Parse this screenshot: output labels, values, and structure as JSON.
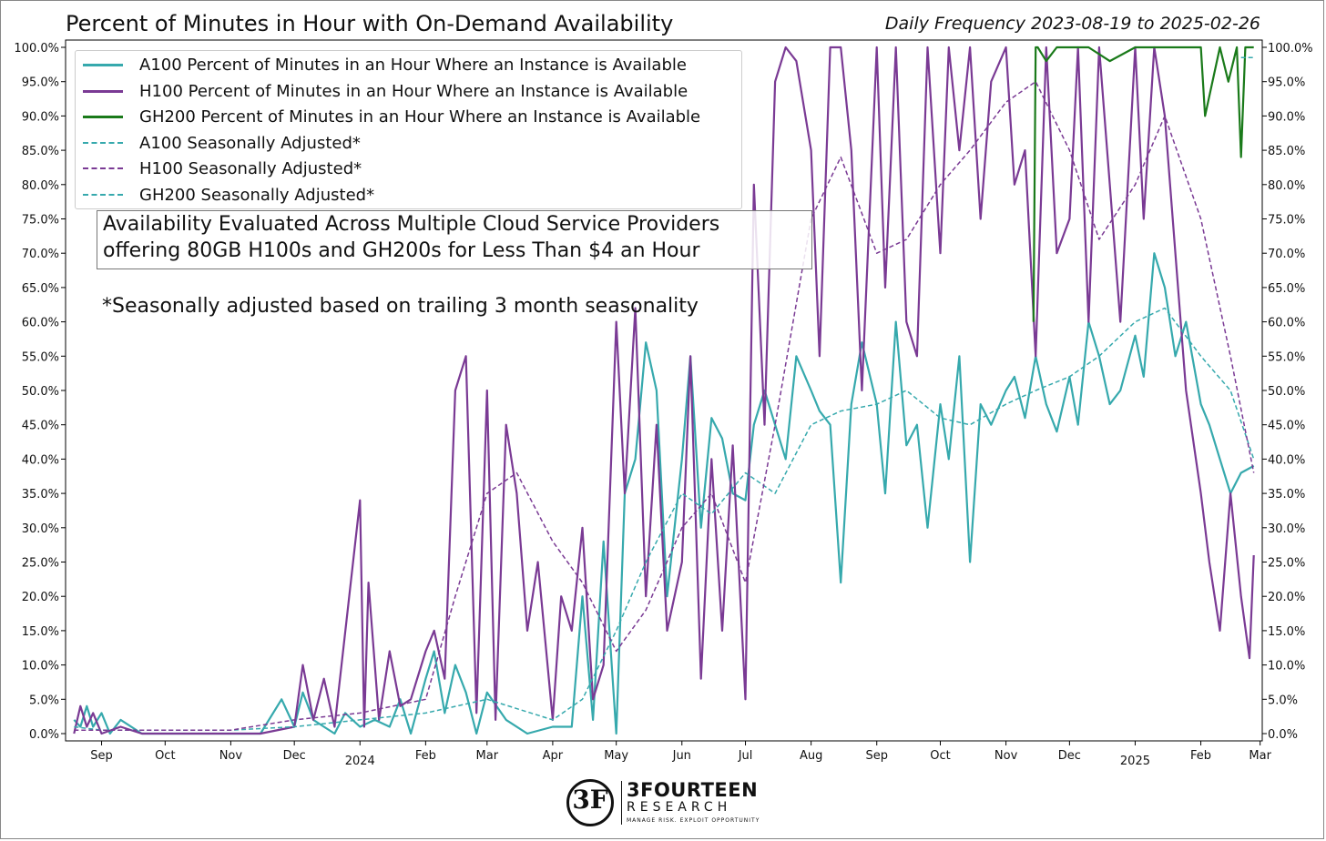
{
  "title": "Percent of Minutes in Hour with On-Demand Availability",
  "subtitle": "Daily Frequency 2023-08-19 to 2025-02-26",
  "annotation_lines": [
    "Availability Evaluated Across Multiple Cloud Service Providers",
    "offering 80GB H100s and GH200s for Less Than $4 an Hour"
  ],
  "note": "*Seasonally adjusted based on trailing 3 month seasonality",
  "logo": {
    "glyph": "3F",
    "name": "3FOURTEEN",
    "sub": "RESEARCH",
    "tagline": "MANAGE RISK. EXPLOIT OPPORTUNITY"
  },
  "colors": {
    "a100": "#36a9ad",
    "h100": "#7a3a94",
    "gh200": "#1a7a1a",
    "a100_sa": "#36a9ad",
    "h100_sa": "#7a3a94",
    "gh200_sa": "#36a9ad"
  },
  "legend": [
    {
      "label": "A100 Percent of Minutes in an Hour Where an Instance is Available",
      "style": "solid",
      "color": "#36a9ad"
    },
    {
      "label": "H100 Percent of Minutes in an Hour Where an Instance is Available",
      "style": "solid",
      "color": "#7a3a94"
    },
    {
      "label": "GH200 Percent of Minutes in an Hour Where an Instance is Available",
      "style": "solid",
      "color": "#1a7a1a"
    },
    {
      "label": "A100 Seasonally Adjusted*",
      "style": "dashed",
      "color": "#36a9ad"
    },
    {
      "label": "H100 Seasonally Adjusted*",
      "style": "dashed",
      "color": "#7a3a94"
    },
    {
      "label": "GH200 Seasonally Adjusted*",
      "style": "dashed",
      "color": "#36a9ad"
    }
  ],
  "chart_data": {
    "type": "line",
    "title": "Percent of Minutes in Hour with On-Demand Availability",
    "subtitle": "Daily Frequency 2023-08-19 to 2025-02-26",
    "xlabel": "",
    "ylabel": "",
    "xlim": [
      "2023-08-15",
      "2025-03-02"
    ],
    "ylim": [
      0,
      100
    ],
    "y_ticks": [
      0,
      5,
      10,
      15,
      20,
      25,
      30,
      35,
      40,
      45,
      50,
      55,
      60,
      65,
      70,
      75,
      80,
      85,
      90,
      95,
      100
    ],
    "y_tick_labels": [
      "0.0%",
      "5.0%",
      "10.0%",
      "15.0%",
      "20.0%",
      "25.0%",
      "30.0%",
      "35.0%",
      "40.0%",
      "45.0%",
      "50.0%",
      "55.0%",
      "60.0%",
      "65.0%",
      "70.0%",
      "75.0%",
      "80.0%",
      "85.0%",
      "90.0%",
      "95.0%",
      "100.0%"
    ],
    "x_ticks": [
      {
        "date": "2023-09-01",
        "label": "Sep",
        "year": ""
      },
      {
        "date": "2023-10-01",
        "label": "Oct",
        "year": ""
      },
      {
        "date": "2023-11-01",
        "label": "Nov",
        "year": ""
      },
      {
        "date": "2023-12-01",
        "label": "Dec",
        "year": ""
      },
      {
        "date": "2024-01-01",
        "label": "",
        "year": "2024"
      },
      {
        "date": "2024-02-01",
        "label": "Feb",
        "year": ""
      },
      {
        "date": "2024-03-01",
        "label": "Mar",
        "year": ""
      },
      {
        "date": "2024-04-01",
        "label": "Apr",
        "year": ""
      },
      {
        "date": "2024-05-01",
        "label": "May",
        "year": ""
      },
      {
        "date": "2024-06-01",
        "label": "Jun",
        "year": ""
      },
      {
        "date": "2024-07-01",
        "label": "Jul",
        "year": ""
      },
      {
        "date": "2024-08-01",
        "label": "Aug",
        "year": ""
      },
      {
        "date": "2024-09-01",
        "label": "Sep",
        "year": ""
      },
      {
        "date": "2024-10-01",
        "label": "Oct",
        "year": ""
      },
      {
        "date": "2024-11-01",
        "label": "Nov",
        "year": ""
      },
      {
        "date": "2024-12-01",
        "label": "Dec",
        "year": ""
      },
      {
        "date": "2025-01-01",
        "label": "",
        "year": "2025"
      },
      {
        "date": "2025-02-01",
        "label": "Feb",
        "year": ""
      },
      {
        "date": "2025-03-01",
        "label": "Mar",
        "year": ""
      }
    ],
    "grid": false,
    "legend_position": "top-left",
    "series": [
      {
        "name": "A100 Percent of Minutes in an Hour Where an Instance is Available",
        "style": "solid",
        "x": [
          "2023-08-19",
          "2023-08-22",
          "2023-08-25",
          "2023-08-28",
          "2023-09-01",
          "2023-09-05",
          "2023-09-10",
          "2023-09-20",
          "2023-10-01",
          "2023-10-15",
          "2023-11-01",
          "2023-11-15",
          "2023-11-25",
          "2023-12-01",
          "2023-12-05",
          "2023-12-10",
          "2023-12-15",
          "2023-12-20",
          "2023-12-25",
          "2024-01-01",
          "2024-01-08",
          "2024-01-15",
          "2024-01-20",
          "2024-01-25",
          "2024-02-01",
          "2024-02-05",
          "2024-02-10",
          "2024-02-15",
          "2024-02-20",
          "2024-02-25",
          "2024-03-01",
          "2024-03-10",
          "2024-03-20",
          "2024-04-01",
          "2024-04-10",
          "2024-04-15",
          "2024-04-20",
          "2024-04-25",
          "2024-05-01",
          "2024-05-05",
          "2024-05-10",
          "2024-05-15",
          "2024-05-20",
          "2024-05-25",
          "2024-06-01",
          "2024-06-05",
          "2024-06-10",
          "2024-06-15",
          "2024-06-20",
          "2024-06-25",
          "2024-07-01",
          "2024-07-05",
          "2024-07-10",
          "2024-07-15",
          "2024-07-20",
          "2024-07-25",
          "2024-08-01",
          "2024-08-05",
          "2024-08-10",
          "2024-08-15",
          "2024-08-20",
          "2024-08-25",
          "2024-09-01",
          "2024-09-05",
          "2024-09-10",
          "2024-09-15",
          "2024-09-20",
          "2024-09-25",
          "2024-10-01",
          "2024-10-05",
          "2024-10-10",
          "2024-10-15",
          "2024-10-20",
          "2024-10-25",
          "2024-11-01",
          "2024-11-05",
          "2024-11-10",
          "2024-11-15",
          "2024-11-20",
          "2024-11-25",
          "2024-12-01",
          "2024-12-05",
          "2024-12-10",
          "2024-12-15",
          "2024-12-20",
          "2024-12-25",
          "2025-01-01",
          "2025-01-05",
          "2025-01-10",
          "2025-01-15",
          "2025-01-20",
          "2025-01-25",
          "2025-02-01",
          "2025-02-05",
          "2025-02-10",
          "2025-02-15",
          "2025-02-20",
          "2025-02-26"
        ],
        "y": [
          2,
          1,
          4,
          1,
          3,
          0,
          2,
          0,
          0,
          0,
          0,
          0,
          5,
          1,
          6,
          2,
          1,
          0,
          3,
          1,
          2,
          1,
          5,
          0,
          8,
          12,
          3,
          10,
          6,
          0,
          6,
          2,
          0,
          1,
          1,
          20,
          2,
          28,
          0,
          35,
          40,
          57,
          50,
          20,
          40,
          55,
          30,
          46,
          43,
          35,
          34,
          45,
          50,
          45,
          40,
          55,
          50,
          47,
          45,
          22,
          48,
          57,
          48,
          35,
          60,
          42,
          45,
          30,
          48,
          40,
          55,
          25,
          48,
          45,
          50,
          52,
          46,
          55,
          48,
          44,
          52,
          45,
          60,
          55,
          48,
          50,
          58,
          52,
          70,
          65,
          55,
          60,
          48,
          45,
          40,
          35,
          38,
          39
        ]
      },
      {
        "name": "H100 Percent of Minutes in an Hour Where an Instance is Available",
        "style": "solid",
        "x": [
          "2023-08-19",
          "2023-08-22",
          "2023-08-25",
          "2023-08-28",
          "2023-09-01",
          "2023-09-10",
          "2023-09-20",
          "2023-10-01",
          "2023-10-15",
          "2023-11-01",
          "2023-11-15",
          "2023-12-01",
          "2023-12-05",
          "2023-12-10",
          "2023-12-15",
          "2023-12-20",
          "2024-01-01",
          "2024-01-03",
          "2024-01-05",
          "2024-01-10",
          "2024-01-15",
          "2024-01-20",
          "2024-01-25",
          "2024-02-01",
          "2024-02-05",
          "2024-02-10",
          "2024-02-15",
          "2024-02-20",
          "2024-02-25",
          "2024-03-01",
          "2024-03-05",
          "2024-03-10",
          "2024-03-15",
          "2024-03-20",
          "2024-03-25",
          "2024-04-01",
          "2024-04-05",
          "2024-04-10",
          "2024-04-15",
          "2024-04-20",
          "2024-04-25",
          "2024-05-01",
          "2024-05-05",
          "2024-05-10",
          "2024-05-15",
          "2024-05-20",
          "2024-05-25",
          "2024-06-01",
          "2024-06-05",
          "2024-06-10",
          "2024-06-15",
          "2024-06-20",
          "2024-06-25",
          "2024-07-01",
          "2024-07-05",
          "2024-07-10",
          "2024-07-15",
          "2024-07-20",
          "2024-07-25",
          "2024-08-01",
          "2024-08-05",
          "2024-08-10",
          "2024-08-15",
          "2024-08-20",
          "2024-08-25",
          "2024-09-01",
          "2024-09-05",
          "2024-09-10",
          "2024-09-15",
          "2024-09-20",
          "2024-09-25",
          "2024-10-01",
          "2024-10-05",
          "2024-10-10",
          "2024-10-15",
          "2024-10-20",
          "2024-10-25",
          "2024-11-01",
          "2024-11-05",
          "2024-11-10",
          "2024-11-15",
          "2024-11-20",
          "2024-11-25",
          "2024-12-01",
          "2024-12-05",
          "2024-12-10",
          "2024-12-15",
          "2024-12-20",
          "2024-12-25",
          "2025-01-01",
          "2025-01-05",
          "2025-01-10",
          "2025-01-15",
          "2025-01-20",
          "2025-01-25",
          "2025-02-01",
          "2025-02-05",
          "2025-02-10",
          "2025-02-15",
          "2025-02-20",
          "2025-02-24",
          "2025-02-26"
        ],
        "y": [
          0,
          4,
          1,
          3,
          0,
          1,
          0,
          0,
          0,
          0,
          0,
          1,
          10,
          2,
          8,
          1,
          34,
          1,
          22,
          2,
          12,
          4,
          5,
          12,
          15,
          8,
          50,
          55,
          3,
          50,
          2,
          45,
          35,
          15,
          25,
          2,
          20,
          15,
          30,
          5,
          10,
          60,
          35,
          62,
          20,
          45,
          15,
          25,
          55,
          8,
          40,
          15,
          42,
          5,
          80,
          45,
          95,
          100,
          98,
          85,
          55,
          100,
          100,
          85,
          50,
          100,
          65,
          100,
          60,
          55,
          100,
          70,
          100,
          85,
          100,
          75,
          95,
          100,
          80,
          85,
          55,
          100,
          70,
          75,
          100,
          60,
          100,
          80,
          60,
          100,
          75,
          100,
          90,
          70,
          50,
          35,
          25,
          15,
          35,
          20,
          11,
          26
        ]
      },
      {
        "name": "GH200 Percent of Minutes in an Hour Where an Instance is Available",
        "style": "solid",
        "x": [
          "2024-11-14",
          "2024-11-15",
          "2024-11-16",
          "2024-11-20",
          "2024-11-25",
          "2024-12-01",
          "2024-12-10",
          "2024-12-20",
          "2025-01-01",
          "2025-01-10",
          "2025-01-20",
          "2025-01-25",
          "2025-02-01",
          "2025-02-03",
          "2025-02-10",
          "2025-02-14",
          "2025-02-18",
          "2025-02-20",
          "2025-02-22",
          "2025-02-26"
        ],
        "y": [
          60,
          100,
          100,
          98,
          100,
          100,
          100,
          98,
          100,
          100,
          100,
          100,
          100,
          90,
          100,
          95,
          100,
          84,
          100,
          100
        ]
      },
      {
        "name": "A100 Seasonally Adjusted*",
        "style": "dashed",
        "x": [
          "2023-08-19",
          "2023-09-01",
          "2023-10-01",
          "2023-11-01",
          "2023-12-01",
          "2024-01-01",
          "2024-02-01",
          "2024-03-01",
          "2024-04-01",
          "2024-04-15",
          "2024-05-01",
          "2024-05-15",
          "2024-06-01",
          "2024-06-15",
          "2024-07-01",
          "2024-07-15",
          "2024-08-01",
          "2024-08-15",
          "2024-09-01",
          "2024-09-15",
          "2024-10-01",
          "2024-10-15",
          "2024-11-01",
          "2024-11-15",
          "2024-12-01",
          "2024-12-15",
          "2025-01-01",
          "2025-01-15",
          "2025-02-01",
          "2025-02-15",
          "2025-02-26"
        ],
        "y": [
          1,
          0.5,
          0.5,
          0.5,
          1,
          2,
          3,
          5,
          2,
          5,
          15,
          25,
          35,
          32,
          38,
          35,
          45,
          47,
          48,
          50,
          46,
          45,
          48,
          50,
          52,
          55,
          60,
          62,
          55,
          50,
          40
        ]
      },
      {
        "name": "H100 Seasonally Adjusted*",
        "style": "dashed",
        "x": [
          "2023-08-19",
          "2023-09-01",
          "2023-10-01",
          "2023-11-01",
          "2023-12-01",
          "2024-01-01",
          "2024-02-01",
          "2024-02-15",
          "2024-03-01",
          "2024-03-15",
          "2024-04-01",
          "2024-04-15",
          "2024-05-01",
          "2024-05-15",
          "2024-06-01",
          "2024-06-15",
          "2024-07-01",
          "2024-07-15",
          "2024-08-01",
          "2024-08-15",
          "2024-09-01",
          "2024-09-15",
          "2024-10-01",
          "2024-10-15",
          "2024-11-01",
          "2024-11-15",
          "2024-12-01",
          "2024-12-15",
          "2025-01-01",
          "2025-01-15",
          "2025-02-01",
          "2025-02-15",
          "2025-02-26"
        ],
        "y": [
          0.5,
          0.5,
          0.5,
          0.5,
          2,
          3,
          5,
          20,
          35,
          38,
          28,
          22,
          12,
          18,
          30,
          35,
          22,
          45,
          75,
          84,
          70,
          72,
          80,
          85,
          92,
          95,
          85,
          72,
          80,
          90,
          75,
          55,
          38
        ]
      },
      {
        "name": "GH200 Seasonally Adjusted*",
        "style": "dashed",
        "x": [
          "2025-02-20",
          "2025-02-26"
        ],
        "y": [
          98.5,
          98.5
        ]
      }
    ]
  }
}
